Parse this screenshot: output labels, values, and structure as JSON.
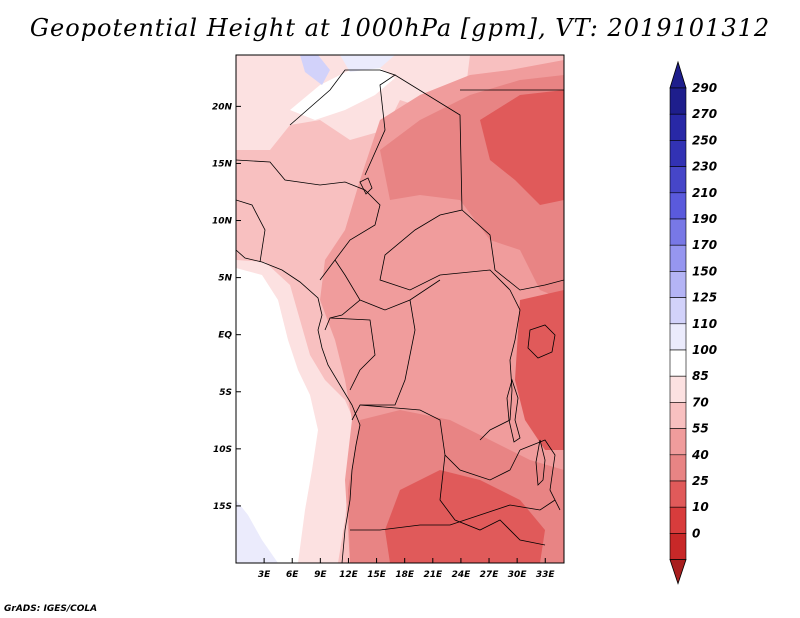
{
  "title": "Geopotential Height at 1000hPa [gpm], VT: 2019101312",
  "credit": "GrADS: IGES/COLA",
  "map": {
    "lon_range": [
      0,
      35
    ],
    "lat_range": [
      -20,
      24.5
    ],
    "lat_ticks": [
      {
        "value": 20,
        "label": "20N"
      },
      {
        "value": 15,
        "label": "15N"
      },
      {
        "value": 10,
        "label": "10N"
      },
      {
        "value": 5,
        "label": "5N"
      },
      {
        "value": 0,
        "label": "EQ"
      },
      {
        "value": -5,
        "label": "5S"
      },
      {
        "value": -10,
        "label": "10S"
      },
      {
        "value": -15,
        "label": "15S"
      }
    ],
    "lon_ticks": [
      {
        "value": 3,
        "label": "3E"
      },
      {
        "value": 6,
        "label": "6E"
      },
      {
        "value": 9,
        "label": "9E"
      },
      {
        "value": 12,
        "label": "12E"
      },
      {
        "value": 15,
        "label": "15E"
      },
      {
        "value": 18,
        "label": "18E"
      },
      {
        "value": 21,
        "label": "21E"
      },
      {
        "value": 24,
        "label": "24E"
      },
      {
        "value": 27,
        "label": "27E"
      },
      {
        "value": 30,
        "label": "30E"
      },
      {
        "value": 33,
        "label": "33E"
      }
    ]
  },
  "colorbar": {
    "levels": [
      {
        "label": "290",
        "color": "#1e1e8c"
      },
      {
        "label": "270",
        "color": "#2828a6"
      },
      {
        "label": "250",
        "color": "#3232b4"
      },
      {
        "label": "230",
        "color": "#4646c8"
      },
      {
        "label": "210",
        "color": "#5a5adc"
      },
      {
        "label": "190",
        "color": "#7878e6"
      },
      {
        "label": "170",
        "color": "#9696f0"
      },
      {
        "label": "150",
        "color": "#b4b4f5"
      },
      {
        "label": "125",
        "color": "#d2d2fa"
      },
      {
        "label": "110",
        "color": "#ebebfc"
      },
      {
        "label": "100",
        "color": "#ffffff"
      },
      {
        "label": "85",
        "color": "#fce1e1"
      },
      {
        "label": "70",
        "color": "#f8c0c0"
      },
      {
        "label": "55",
        "color": "#f09c9c"
      },
      {
        "label": "40",
        "color": "#e88484"
      },
      {
        "label": "25",
        "color": "#e05a5a"
      },
      {
        "label": "10",
        "color": "#d83c3c"
      },
      {
        "label": "0",
        "color": "#c82828"
      }
    ],
    "bottom_color": "#a81e1e"
  }
}
